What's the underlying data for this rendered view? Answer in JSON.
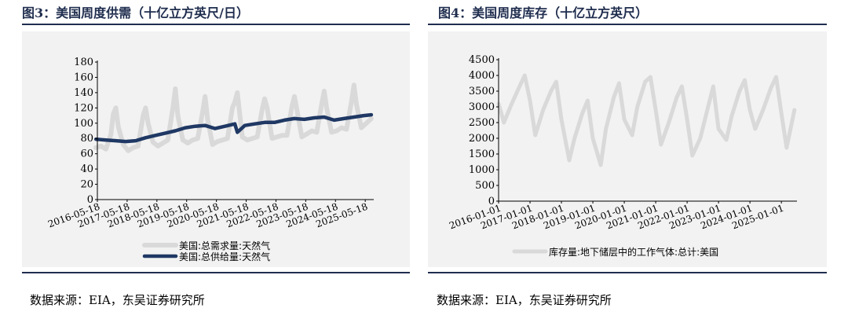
{
  "figures": [
    {
      "title": "图3：美国周度供需（十亿立方英尺/日）"
    },
    {
      "title": "图4：美国周度库存（十亿立方英尺）"
    }
  ],
  "source_left": "数据来源：EIA，东吴证券研究所",
  "source_right": "数据来源：EIA，东吴证券研究所",
  "chart_data": [
    {
      "type": "line",
      "ylim": [
        0,
        180
      ],
      "yticks": [
        0,
        20,
        40,
        60,
        80,
        100,
        120,
        140,
        160,
        180
      ],
      "x_range": [
        "2016-05-18",
        "2025-08-31"
      ],
      "xtick_labels": [
        "2016-05-18",
        "2017-05-18",
        "2018-05-18",
        "2019-05-18",
        "2020-05-18",
        "2021-05-18",
        "2022-05-18",
        "2023-05-18",
        "2024-05-18",
        "2025-05-18"
      ],
      "legend": "bottom",
      "series": [
        {
          "name": "美国:总需求量:天然气",
          "color": "#d9d9d9",
          "x": [
            "2016-05",
            "2016-07",
            "2016-09",
            "2016-11",
            "2016-12",
            "2017-01",
            "2017-02",
            "2017-04",
            "2017-06",
            "2017-08",
            "2017-10",
            "2017-12",
            "2018-01",
            "2018-02",
            "2018-04",
            "2018-06",
            "2018-08",
            "2018-10",
            "2018-12",
            "2019-01",
            "2019-02",
            "2019-04",
            "2019-06",
            "2019-08",
            "2019-10",
            "2019-12",
            "2020-01",
            "2020-02",
            "2020-04",
            "2020-06",
            "2020-08",
            "2020-10",
            "2020-12",
            "2021-01",
            "2021-02",
            "2021-04",
            "2021-06",
            "2021-08",
            "2021-10",
            "2021-12",
            "2022-01",
            "2022-02",
            "2022-04",
            "2022-06",
            "2022-08",
            "2022-10",
            "2022-12",
            "2023-01",
            "2023-02",
            "2023-04",
            "2023-06",
            "2023-08",
            "2023-10",
            "2023-12",
            "2024-01",
            "2024-02",
            "2024-04",
            "2024-06",
            "2024-08",
            "2024-10",
            "2024-12",
            "2025-01",
            "2025-02",
            "2025-04",
            "2025-06",
            "2025-08"
          ],
          "y": [
            68,
            70,
            66,
            85,
            112,
            120,
            95,
            72,
            64,
            68,
            70,
            110,
            120,
            100,
            75,
            70,
            74,
            78,
            120,
            145,
            110,
            78,
            74,
            78,
            80,
            115,
            135,
            105,
            72,
            76,
            78,
            80,
            120,
            128,
            140,
            82,
            78,
            80,
            82,
            118,
            132,
            120,
            80,
            82,
            84,
            84,
            122,
            135,
            118,
            82,
            86,
            90,
            88,
            125,
            142,
            120,
            88,
            90,
            94,
            92,
            128,
            150,
            125,
            94,
            100,
            106
          ]
        },
        {
          "name": "美国:总供给量:天然气",
          "color": "#1f3864",
          "x": [
            "2016-05",
            "2016-09",
            "2017-01",
            "2017-05",
            "2017-09",
            "2018-01",
            "2018-05",
            "2018-09",
            "2019-01",
            "2019-05",
            "2019-09",
            "2020-01",
            "2020-05",
            "2020-09",
            "2021-01",
            "2021-02",
            "2021-05",
            "2021-09",
            "2022-01",
            "2022-05",
            "2022-09",
            "2023-01",
            "2023-05",
            "2023-09",
            "2024-01",
            "2024-05",
            "2024-09",
            "2025-01",
            "2025-05",
            "2025-08"
          ],
          "y": [
            79,
            78,
            77,
            76,
            77,
            81,
            84,
            87,
            90,
            94,
            96,
            97,
            93,
            96,
            99,
            88,
            97,
            99,
            101,
            101,
            104,
            106,
            105,
            107,
            108,
            104,
            106,
            108,
            110,
            111
          ]
        }
      ]
    },
    {
      "type": "line",
      "ylim": [
        0,
        4500
      ],
      "yticks": [
        0,
        500,
        1000,
        1500,
        2000,
        2500,
        3000,
        3500,
        4000,
        4500
      ],
      "x_range": [
        "2016-01-01",
        "2025-06-30"
      ],
      "xtick_labels": [
        "2016-01-01",
        "2017-01-01",
        "2018-01-01",
        "2019-01-01",
        "2020-01-01",
        "2021-01-01",
        "2022-01-01",
        "2023-01-01",
        "2024-01-01",
        "2025-01-01"
      ],
      "legend": "bottom",
      "series": [
        {
          "name": "库存量:地下储层中的工作气体:总计:美国",
          "color": "#d9d9d9",
          "x": [
            "2016-01",
            "2016-03",
            "2016-06",
            "2016-09",
            "2016-11",
            "2017-01",
            "2017-03",
            "2017-06",
            "2017-09",
            "2017-11",
            "2018-01",
            "2018-04",
            "2018-06",
            "2018-09",
            "2018-11",
            "2019-01",
            "2019-04",
            "2019-06",
            "2019-09",
            "2019-11",
            "2020-01",
            "2020-04",
            "2020-06",
            "2020-09",
            "2020-11",
            "2021-01",
            "2021-03",
            "2021-06",
            "2021-09",
            "2021-11",
            "2022-01",
            "2022-03",
            "2022-06",
            "2022-09",
            "2022-11",
            "2023-01",
            "2023-04",
            "2023-06",
            "2023-09",
            "2023-11",
            "2024-01",
            "2024-03",
            "2024-06",
            "2024-09",
            "2024-11",
            "2025-01",
            "2025-03",
            "2025-06"
          ],
          "y": [
            3100,
            2500,
            3100,
            3650,
            4000,
            3200,
            2100,
            2900,
            3500,
            3800,
            2600,
            1300,
            2000,
            2800,
            3200,
            2000,
            1150,
            2300,
            3300,
            3750,
            2600,
            2100,
            3000,
            3800,
            3950,
            2900,
            1800,
            2500,
            3300,
            3650,
            2600,
            1450,
            2000,
            3000,
            3650,
            2300,
            1950,
            2700,
            3500,
            3850,
            2900,
            2300,
            2900,
            3600,
            3950,
            2800,
            1700,
            2900
          ]
        }
      ]
    }
  ]
}
